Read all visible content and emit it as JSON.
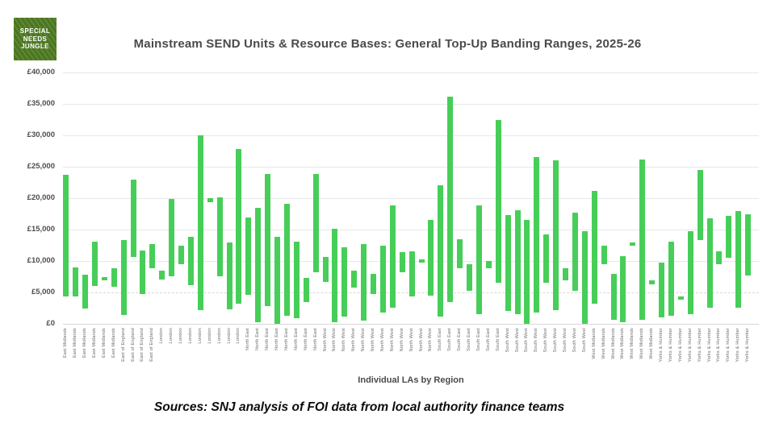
{
  "logo": {
    "lines": [
      "SPECIAL",
      "NEEDS",
      "JUNGLE"
    ],
    "bg_color": "#4b771f",
    "text_color": "#ffffff"
  },
  "footer": {
    "source_text": "Sources: SNJ analysis of FOI data from local authority finance teams"
  },
  "chart_data": {
    "type": "bar",
    "subtype": "floating-range-bars",
    "title": "Mainstream SEND Units & Resource Bases: General Top-Up Banding Ranges, 2025-26",
    "xlabel": "Individual LAs by Region",
    "ylabel": "",
    "ylim": [
      0,
      40000
    ],
    "grid": true,
    "legend": "none",
    "bar_color": "#46ce58",
    "title_color": "#4a4a4a",
    "yticks": [
      0,
      5000,
      10000,
      15000,
      20000,
      25000,
      30000,
      35000,
      40000
    ],
    "ytick_labels": [
      "£0",
      "£5,000",
      "£10,000",
      "£15,000",
      "£20,000",
      "£25,000",
      "£30,000",
      "£35,000",
      "£40,000"
    ],
    "bars": [
      {
        "region": "East Midlands",
        "min": 4300,
        "max": 23700
      },
      {
        "region": "East Midlands",
        "min": 4300,
        "max": 9000
      },
      {
        "region": "East Midlands",
        "min": 2400,
        "max": 7800
      },
      {
        "region": "East Midlands",
        "min": 6000,
        "max": 13100
      },
      {
        "region": "East Midlands",
        "min": 6900,
        "max": 7500
      },
      {
        "region": "East Midlands",
        "min": 5900,
        "max": 8800
      },
      {
        "region": "East of England",
        "min": 1400,
        "max": 13300
      },
      {
        "region": "East of England",
        "min": 10700,
        "max": 23000
      },
      {
        "region": "East of England",
        "min": 4800,
        "max": 11700
      },
      {
        "region": "East of England",
        "min": 8800,
        "max": 12700
      },
      {
        "region": "London",
        "min": 7100,
        "max": 8400
      },
      {
        "region": "London",
        "min": 7500,
        "max": 19900
      },
      {
        "region": "London",
        "min": 9500,
        "max": 12500
      },
      {
        "region": "London",
        "min": 6100,
        "max": 13800
      },
      {
        "region": "London",
        "min": 2200,
        "max": 30000
      },
      {
        "region": "London",
        "min": 19400,
        "max": 20000
      },
      {
        "region": "London",
        "min": 7500,
        "max": 20100
      },
      {
        "region": "London",
        "min": 2300,
        "max": 12900
      },
      {
        "region": "London",
        "min": 3200,
        "max": 27800
      },
      {
        "region": "North East",
        "min": 4600,
        "max": 16900
      },
      {
        "region": "North East",
        "min": 300,
        "max": 18500
      },
      {
        "region": "North East",
        "min": 2800,
        "max": 23900
      },
      {
        "region": "North East",
        "min": 0,
        "max": 13800
      },
      {
        "region": "North East",
        "min": 1300,
        "max": 19100
      },
      {
        "region": "North East",
        "min": 900,
        "max": 13100
      },
      {
        "region": "North East",
        "min": 3500,
        "max": 7300
      },
      {
        "region": "North East",
        "min": 8200,
        "max": 23900
      },
      {
        "region": "North West",
        "min": 6700,
        "max": 10700
      },
      {
        "region": "North West",
        "min": 200,
        "max": 15100
      },
      {
        "region": "North West",
        "min": 1100,
        "max": 12200
      },
      {
        "region": "North West",
        "min": 5800,
        "max": 8400
      },
      {
        "region": "North West",
        "min": 500,
        "max": 12700
      },
      {
        "region": "North West",
        "min": 4700,
        "max": 8000
      },
      {
        "region": "North West",
        "min": 1800,
        "max": 12500
      },
      {
        "region": "North West",
        "min": 2600,
        "max": 18800
      },
      {
        "region": "North West",
        "min": 8200,
        "max": 11400
      },
      {
        "region": "North West",
        "min": 4400,
        "max": 11500
      },
      {
        "region": "North West",
        "min": 9700,
        "max": 10300
      },
      {
        "region": "North West",
        "min": 4500,
        "max": 16500
      },
      {
        "region": "South East",
        "min": 1100,
        "max": 22000
      },
      {
        "region": "South East",
        "min": 3400,
        "max": 36200
      },
      {
        "region": "South East",
        "min": 8800,
        "max": 13500
      },
      {
        "region": "South East",
        "min": 5200,
        "max": 9500
      },
      {
        "region": "South East",
        "min": 1500,
        "max": 18900
      },
      {
        "region": "South East",
        "min": 8800,
        "max": 10000
      },
      {
        "region": "South East",
        "min": 6500,
        "max": 32400
      },
      {
        "region": "South West",
        "min": 2000,
        "max": 17300
      },
      {
        "region": "South West",
        "min": 1500,
        "max": 18100
      },
      {
        "region": "South West",
        "min": 0,
        "max": 16500
      },
      {
        "region": "South West",
        "min": 1800,
        "max": 26600
      },
      {
        "region": "South West",
        "min": 6500,
        "max": 14200
      },
      {
        "region": "South West",
        "min": 2200,
        "max": 26000
      },
      {
        "region": "South West",
        "min": 6900,
        "max": 8800
      },
      {
        "region": "South West",
        "min": 5200,
        "max": 17700
      },
      {
        "region": "South West",
        "min": 0,
        "max": 14700
      },
      {
        "region": "West Midlands",
        "min": 3200,
        "max": 21200
      },
      {
        "region": "West Midlands",
        "min": 9500,
        "max": 12500
      },
      {
        "region": "West Midlands",
        "min": 700,
        "max": 8000
      },
      {
        "region": "West Midlands",
        "min": 300,
        "max": 10800
      },
      {
        "region": "West Midlands",
        "min": 12400,
        "max": 13000
      },
      {
        "region": "West Midlands",
        "min": 700,
        "max": 26100
      },
      {
        "region": "West Midlands",
        "min": 6300,
        "max": 6900
      },
      {
        "region": "Yorks & Humber",
        "min": 1000,
        "max": 9800
      },
      {
        "region": "Yorks & Humber",
        "min": 1300,
        "max": 13100
      },
      {
        "region": "Yorks & Humber",
        "min": 3800,
        "max": 4400
      },
      {
        "region": "Yorks & Humber",
        "min": 1500,
        "max": 14800
      },
      {
        "region": "Yorks & Humber",
        "min": 13300,
        "max": 24500
      },
      {
        "region": "Yorks & Humber",
        "min": 2600,
        "max": 16800
      },
      {
        "region": "Yorks & Humber",
        "min": 9500,
        "max": 11500
      },
      {
        "region": "Yorks & Humber",
        "min": 10500,
        "max": 17200
      },
      {
        "region": "Yorks & Humber",
        "min": 2600,
        "max": 18000
      },
      {
        "region": "Yorks & Humber",
        "min": 7700,
        "max": 17400
      }
    ]
  }
}
